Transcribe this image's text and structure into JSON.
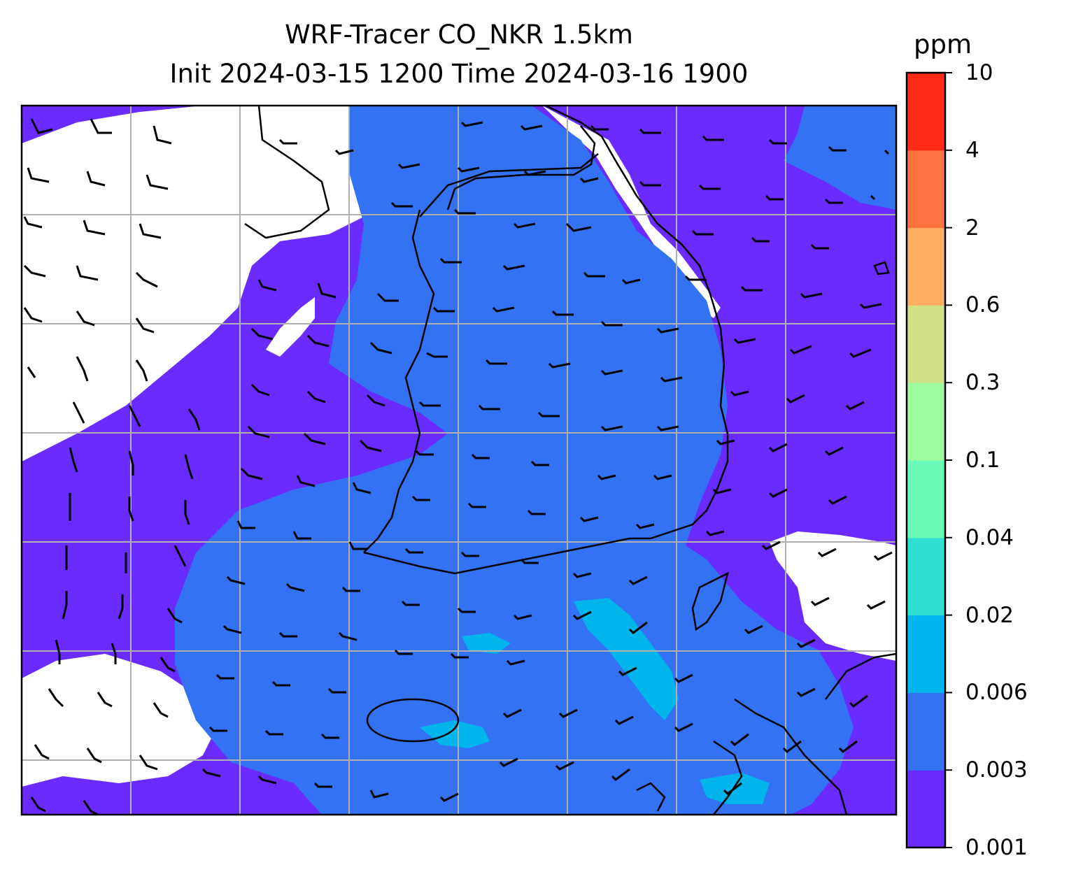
{
  "title": {
    "line1": "WRF-Tracer CO_NKR 1.5km",
    "line2": "Init 2024-03-15 1200 Time 2024-03-16 1900"
  },
  "colorbar": {
    "unit": "ppm",
    "levels": [
      "0.001",
      "0.003",
      "0.006",
      "0.02",
      "0.04",
      "0.1",
      "0.3",
      "0.6",
      "2",
      "4",
      "10"
    ],
    "colors": [
      "#6a2bff",
      "#3373f3",
      "#00b5ec",
      "#2fdfd1",
      "#69fcb9",
      "#9cfc9b",
      "#cfe085",
      "#ffae63",
      "#ff7241",
      "#ff2b17"
    ]
  },
  "map": {
    "field": "CO_NKR tracer concentration",
    "fill_colors": {
      "below_range": "#ffffff",
      "low": "#6a2bff",
      "mid": "#3373f3",
      "high": "#00b5ec"
    },
    "gridlines": true,
    "coastline_color": "#000000",
    "wind_barbs": true
  }
}
